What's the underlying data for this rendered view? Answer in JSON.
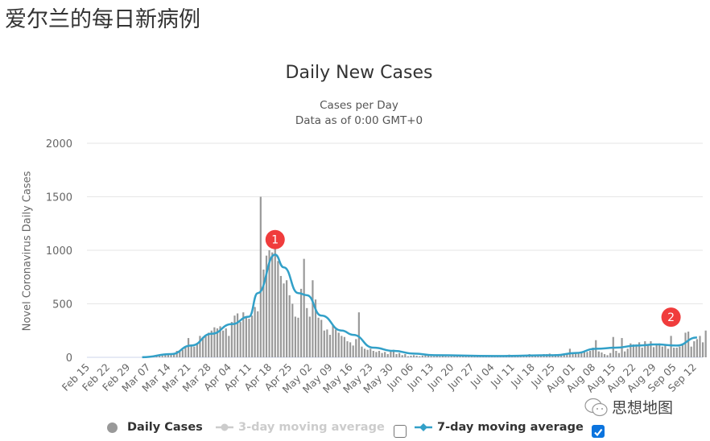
{
  "page": {
    "heading": "爱尔兰的每日新病例",
    "watermark": "思想地图"
  },
  "chart_data": {
    "type": "bar",
    "title": "Daily New Cases",
    "subtitle_lines": [
      "Cases per Day",
      "Data as of 0:00 GMT+0"
    ],
    "xlabel": "",
    "ylabel": "Novel Coronavirus Daily Cases",
    "ylim": [
      0,
      2000
    ],
    "yticks": [
      0,
      500,
      1000,
      1500,
      2000
    ],
    "grid": true,
    "legend_position": "bottom",
    "x_tick_labels": [
      "Feb 15",
      "Feb 22",
      "Feb 29",
      "Mar 07",
      "Mar 14",
      "Mar 21",
      "Mar 28",
      "Apr 04",
      "Apr 11",
      "Apr 18",
      "Apr 25",
      "May 02",
      "May 09",
      "May 16",
      "May 23",
      "May 30",
      "Jun 06",
      "Jun 13",
      "Jun 20",
      "Jun 27",
      "Jul 04",
      "Jul 11",
      "Jul 18",
      "Jul 25",
      "Aug 01",
      "Aug 08",
      "Aug 15",
      "Aug 22",
      "Aug 29",
      "Sep 05",
      "Sep 12"
    ],
    "start_date": "Feb 15",
    "series": [
      {
        "name": "Daily Cases",
        "type": "bar",
        "color": "#999999",
        "start_day_offset": 15,
        "values": [
          0,
          0,
          0,
          1,
          1,
          2,
          5,
          6,
          8,
          11,
          14,
          20,
          26,
          30,
          40,
          60,
          58,
          70,
          100,
          180,
          120,
          100,
          130,
          200,
          190,
          210,
          230,
          250,
          280,
          270,
          290,
          250,
          270,
          200,
          330,
          390,
          410,
          330,
          420,
          380,
          360,
          390,
          470,
          430,
          1500,
          820,
          950,
          1000,
          980,
          1060,
          900,
          760,
          690,
          720,
          580,
          500,
          380,
          370,
          640,
          920,
          460,
          380,
          720,
          540,
          370,
          350,
          250,
          260,
          210,
          300,
          260,
          230,
          200,
          190,
          150,
          140,
          110,
          170,
          420,
          100,
          80,
          70,
          80,
          60,
          50,
          60,
          40,
          50,
          30,
          60,
          70,
          30,
          40,
          20,
          30,
          10,
          15,
          20,
          15,
          10,
          15,
          20,
          25,
          10,
          10,
          15,
          10,
          12,
          10,
          8,
          10,
          12,
          15,
          10,
          10,
          10,
          14,
          10,
          12,
          10,
          10,
          10,
          10,
          15,
          12,
          10,
          15,
          18,
          10,
          20,
          25,
          15,
          20,
          15,
          18,
          15,
          20,
          30,
          25,
          20,
          18,
          20,
          30,
          30,
          35,
          15,
          30,
          30,
          30,
          35,
          25,
          80,
          30,
          40,
          45,
          45,
          55,
          50,
          60,
          90,
          160,
          55,
          45,
          30,
          20,
          40,
          190,
          60,
          40,
          180,
          55,
          80,
          130,
          120,
          120,
          140,
          90,
          150,
          110,
          150,
          95,
          120,
          130,
          100,
          115,
          80,
          200,
          90,
          90,
          100,
          120,
          230,
          240,
          100,
          150,
          170,
          200,
          140,
          250
        ],
        "notes": "values estimated from bar heights; day index 0 = Mar 01"
      },
      {
        "name": "3-day moving average",
        "type": "line",
        "color": "#cccccc",
        "visible": false
      },
      {
        "name": "7-day moving average",
        "type": "line",
        "color": "#32a0c8",
        "visible": true,
        "key_points": [
          {
            "date": "Mar 04",
            "value": 1
          },
          {
            "date": "Mar 14",
            "value": 30
          },
          {
            "date": "Mar 21",
            "value": 110
          },
          {
            "date": "Mar 28",
            "value": 220
          },
          {
            "date": "Apr 04",
            "value": 310
          },
          {
            "date": "Apr 10",
            "value": 380
          },
          {
            "date": "Apr 13",
            "value": 600
          },
          {
            "date": "Apr 19",
            "value": 960
          },
          {
            "date": "Apr 22",
            "value": 840
          },
          {
            "date": "Apr 27",
            "value": 600
          },
          {
            "date": "Apr 30",
            "value": 580
          },
          {
            "date": "May 05",
            "value": 390
          },
          {
            "date": "May 12",
            "value": 250
          },
          {
            "date": "May 16",
            "value": 210
          },
          {
            "date": "May 23",
            "value": 90
          },
          {
            "date": "May 30",
            "value": 60
          },
          {
            "date": "Jun 06",
            "value": 35
          },
          {
            "date": "Jun 13",
            "value": 20
          },
          {
            "date": "Jul 04",
            "value": 12
          },
          {
            "date": "Jul 25",
            "value": 20
          },
          {
            "date": "Aug 01",
            "value": 40
          },
          {
            "date": "Aug 08",
            "value": 80
          },
          {
            "date": "Aug 15",
            "value": 90
          },
          {
            "date": "Aug 22",
            "value": 110
          },
          {
            "date": "Aug 29",
            "value": 120
          },
          {
            "date": "Sep 05",
            "value": 110
          },
          {
            "date": "Sep 12",
            "value": 185
          }
        ]
      }
    ],
    "annotations": [
      {
        "label": "1",
        "date": "Apr 19",
        "value": 1100,
        "color": "#f03c3c"
      },
      {
        "label": "2",
        "date": "Sep 03",
        "value": 375,
        "color": "#f03c3c"
      }
    ]
  },
  "legend": {
    "items": [
      {
        "label": "Daily Cases",
        "enabled": true
      },
      {
        "label": "3-day moving average",
        "enabled": false,
        "checkbox_checked": false
      },
      {
        "label": "7-day moving average",
        "enabled": true,
        "checkbox_checked": true
      }
    ]
  }
}
